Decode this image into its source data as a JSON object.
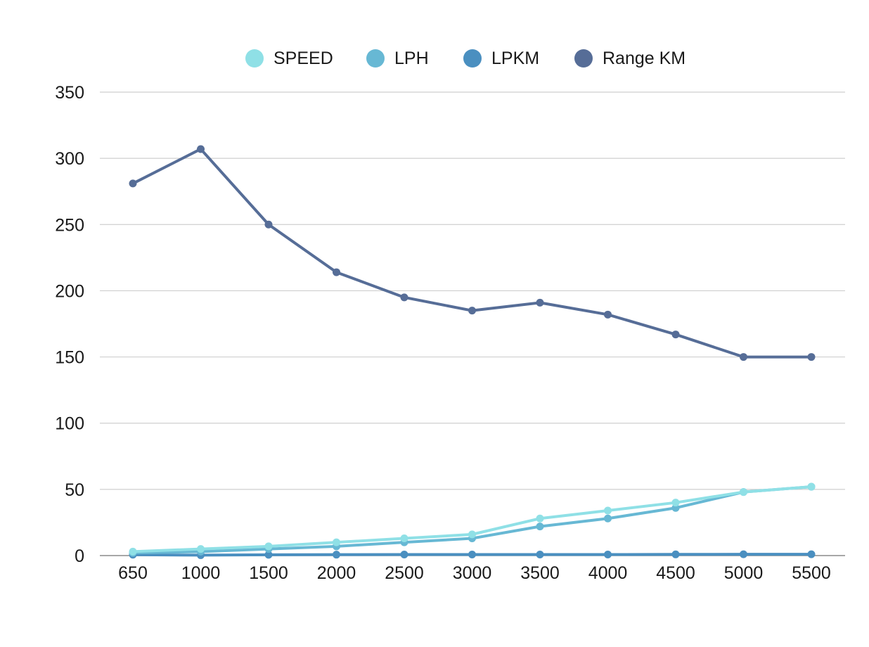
{
  "chart_data": {
    "type": "line",
    "title": "",
    "xlabel": "",
    "ylabel": "",
    "categories": [
      "650",
      "1000",
      "1500",
      "2000",
      "2500",
      "3000",
      "3500",
      "4000",
      "4500",
      "5000",
      "5500"
    ],
    "ylim": [
      0,
      350
    ],
    "yticks": [
      "0",
      "50",
      "100",
      "150",
      "200",
      "250",
      "300",
      "350"
    ],
    "grid": true,
    "legend": "top-center",
    "series": [
      {
        "name": "SPEED",
        "color": "#8fe0e6",
        "values": [
          3,
          5,
          7,
          10,
          13,
          16,
          28,
          34,
          40,
          48,
          52
        ]
      },
      {
        "name": "LPH",
        "color": "#67b8d4",
        "values": [
          2,
          3,
          5,
          7,
          10,
          13,
          22,
          28,
          36,
          48,
          52
        ]
      },
      {
        "name": "LPKM",
        "color": "#4a8fc0",
        "values": [
          0.67,
          0.3,
          0.6,
          0.7,
          0.8,
          0.8,
          0.8,
          0.8,
          0.9,
          1.0,
          1.0
        ]
      },
      {
        "name": "Range KM",
        "color": "#566d97",
        "values": [
          281,
          307,
          250,
          214,
          195,
          185,
          191,
          182,
          167,
          150,
          150
        ]
      }
    ]
  }
}
